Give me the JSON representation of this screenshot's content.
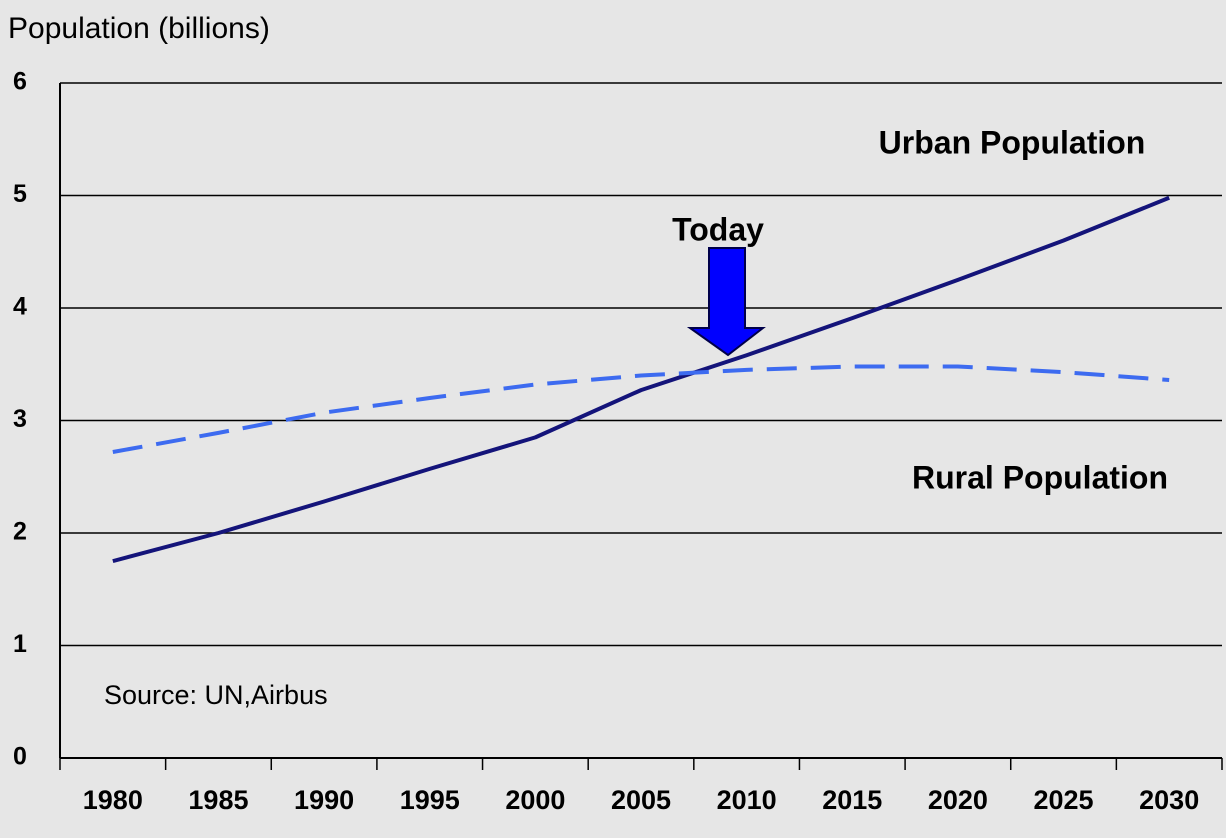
{
  "chart_data": {
    "type": "line",
    "y_label": "Population (billions)",
    "categories": [
      "1980",
      "1985",
      "1990",
      "1995",
      "2000",
      "2005",
      "2010",
      "2015",
      "2020",
      "2025",
      "2030"
    ],
    "series": [
      {
        "name": "Urban Population",
        "color": "#14147a",
        "dashed": false,
        "values": [
          1.75,
          2.0,
          2.28,
          2.57,
          2.85,
          3.27,
          3.58,
          3.91,
          4.25,
          4.6,
          4.98
        ]
      },
      {
        "name": "Rural Population",
        "color": "#3d6bf0",
        "dashed": true,
        "values": [
          2.72,
          2.89,
          3.07,
          3.2,
          3.32,
          3.4,
          3.45,
          3.48,
          3.48,
          3.43,
          3.36
        ]
      }
    ],
    "ylim": [
      0,
      6
    ],
    "yticks": [
      0,
      1,
      2,
      3,
      4,
      5,
      6
    ],
    "grid": true,
    "annotations": [
      "Today",
      "Source: UN,Airbus"
    ]
  }
}
